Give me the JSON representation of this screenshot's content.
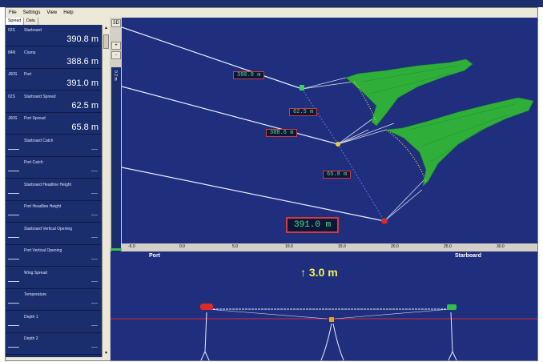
{
  "menu": [
    "File",
    "Settings",
    "View",
    "Help"
  ],
  "tabs": [
    "Spread",
    "Data"
  ],
  "rows": [
    {
      "code": "02S",
      "label": "Starboard",
      "value": "390.8 m"
    },
    {
      "code": "84N",
      "label": "Clump",
      "value": "388.6 m"
    },
    {
      "code": "J60S",
      "label": "Port",
      "value": "391.0 m"
    },
    {
      "code": "02S",
      "label": "Starboard Spread",
      "value": "62.5 m"
    },
    {
      "code": "J60S",
      "label": "Port Spread",
      "value": "65.8 m"
    },
    {
      "code": "",
      "label": "Starboard Catch",
      "value": "----"
    },
    {
      "code": "",
      "label": "Port Catch",
      "value": "----"
    },
    {
      "code": "",
      "label": "Starboard Headline Height",
      "value": "----"
    },
    {
      "code": "",
      "label": "Port Headline Height",
      "value": "----"
    },
    {
      "code": "",
      "label": "Starboard Vertical Opening",
      "value": "----"
    },
    {
      "code": "",
      "label": "Port Vertical Opening",
      "value": "----"
    },
    {
      "code": "",
      "label": "Wing Spread",
      "value": "----"
    },
    {
      "code": "",
      "label": "Temperature",
      "value": "----"
    },
    {
      "code": "",
      "label": "Depth 1",
      "value": "----"
    },
    {
      "code": "",
      "label": "Depth 2",
      "value": "----"
    }
  ],
  "tools": {
    "view3d": "3D",
    "plus": "+",
    "minus": "-",
    "c": "C",
    "plus2": "+"
  },
  "side_scale": "0 2 m",
  "readouts": {
    "starboard": "390.8 m",
    "starboard_spread": "62.5 m",
    "clump": "388.6 m",
    "port_spread": "65.8 m",
    "port": "391.0 m"
  },
  "axis_ticks": [
    "-5.0",
    "0.0",
    "5.0",
    "10.0",
    "15.0",
    "20.0",
    "25.0",
    "30.0"
  ],
  "front": {
    "port_label": "Port",
    "starboard_label": "Starboard",
    "clearance": "↑ 3.0 m"
  },
  "colors": {
    "panel": "#1a2d6d",
    "view": "#1f2f7e",
    "net": "#2fae3a",
    "readout_text": "#4fe080",
    "readout_border": "#d43a3a"
  }
}
